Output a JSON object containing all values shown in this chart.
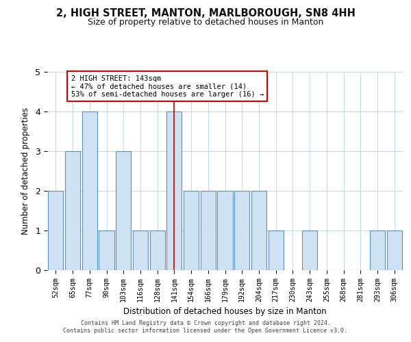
{
  "title": "2, HIGH STREET, MANTON, MARLBOROUGH, SN8 4HH",
  "subtitle": "Size of property relative to detached houses in Manton",
  "xlabel": "Distribution of detached houses by size in Manton",
  "ylabel": "Number of detached properties",
  "categories": [
    "52sqm",
    "65sqm",
    "77sqm",
    "90sqm",
    "103sqm",
    "116sqm",
    "128sqm",
    "141sqm",
    "154sqm",
    "166sqm",
    "179sqm",
    "192sqm",
    "204sqm",
    "217sqm",
    "230sqm",
    "243sqm",
    "255sqm",
    "268sqm",
    "281sqm",
    "293sqm",
    "306sqm"
  ],
  "values": [
    2,
    3,
    4,
    1,
    3,
    1,
    1,
    4,
    2,
    2,
    2,
    2,
    2,
    1,
    0,
    1,
    0,
    0,
    0,
    1,
    1
  ],
  "highlight_index": 7,
  "highlight_label": "2 HIGH STREET: 143sqm",
  "annotation_line1": "← 47% of detached houses are smaller (14)",
  "annotation_line2": "53% of semi-detached houses are larger (16) →",
  "bar_color": "#cfe2f3",
  "bar_edge_color": "#5b8ec4",
  "highlight_line_color": "#cc0000",
  "annotation_box_edge_color": "#cc0000",
  "ylim": [
    0,
    5
  ],
  "yticks": [
    0,
    1,
    2,
    3,
    4,
    5
  ],
  "background_color": "#ffffff",
  "footer_line1": "Contains HM Land Registry data © Crown copyright and database right 2024.",
  "footer_line2": "Contains public sector information licensed under the Open Government Licence v3.0."
}
